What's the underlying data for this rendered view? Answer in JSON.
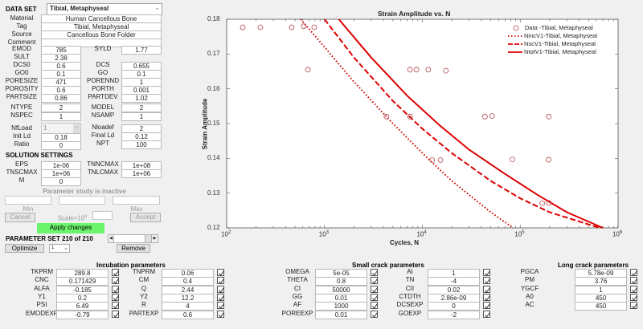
{
  "data_set": {
    "label": "DATA SET",
    "selected": "Tibial, Metaphyseal",
    "material_label": "Material",
    "material": "Human Cancellous Bone",
    "tag_label": "Tag",
    "tag": "Tibial, Metaphyseal",
    "source_label": "Source",
    "source": "Cancellous Bone Folder",
    "comment_label": "Comment",
    "comment": ""
  },
  "fields": [
    {
      "label": "EMOD",
      "value": "785",
      "label2": "SYLD",
      "value2": "1.77"
    },
    {
      "label": "SULT",
      "value": "2.38"
    },
    {
      "label": "DCS0",
      "value": "0.6",
      "label2": "DCS",
      "value2": "0.655"
    },
    {
      "label": "GO0",
      "value": "0.1",
      "label2": "GO",
      "value2": "0.1"
    },
    {
      "label": "PORESIZE",
      "value": "471",
      "label2": "PORENND",
      "value2": "1"
    },
    {
      "label": "POROSITY",
      "value": "0.6",
      "label2": "PORTH",
      "value2": "0.001"
    },
    {
      "label": "PARTSIZE",
      "value": "0.86",
      "label2": "PARTDEV",
      "value2": "1.02"
    },
    {
      "label": "NTYPE",
      "value": "2",
      "label2": "MODEL",
      "value2": "2"
    },
    {
      "label": "NSPEC",
      "value": "1",
      "label2": "NSAMP",
      "value2": "1"
    }
  ],
  "loading": {
    "nfload_label": "NfLoad",
    "nfload": "1",
    "nloadef_label": "Nloadef",
    "nloadef": "2",
    "initld_label": "Init Ld",
    "initld": "0.18",
    "finalld_label": "Final Ld",
    "finalld": "0.12",
    "ratio_label": "Ratio",
    "ratio": "0",
    "npt_label": "NPT",
    "npt": "100"
  },
  "solution": {
    "title": "SOLUTION SETTINGS",
    "eps_label": "EPS",
    "eps": "1e-06",
    "tnncmax_label": "TNNCMAX",
    "tnncmax": "1e+08",
    "tnscmax_label": "TNSCMAX",
    "tnscmax": "1e+06",
    "tnlcmax_label": "TNLCMAX",
    "tnlcmax": "1e+06",
    "m_label": "M",
    "m": "0"
  },
  "param_study": {
    "status": "Parameter study is inactive",
    "min_label": "Min",
    "max_label": "Max",
    "cancel": "Cancel",
    "scale": "Scale=10",
    "scale_exp": "x",
    "accept": "Accept",
    "apply": "Apply changes",
    "set_label": "PARAMETER SET 210 of 210",
    "optimize": "Optimize",
    "opt_select": "1",
    "remove": "Remove"
  },
  "incubation": {
    "title": "Incubation parameters",
    "rows": [
      {
        "l": "TKPRM",
        "v": "289.8",
        "l2": "TNPRM",
        "v2": "0.06"
      },
      {
        "l": "CNC",
        "v": "0.171429",
        "l2": "CM",
        "v2": "0.4"
      },
      {
        "l": "ALFA",
        "v": "-0.185",
        "l2": "Q",
        "v2": "2.44"
      },
      {
        "l": "Y1",
        "v": "0.2",
        "l2": "Y2",
        "v2": "12.2"
      },
      {
        "l": "PSI",
        "v": "6.49",
        "l2": "R",
        "v2": "4"
      },
      {
        "l": "EMODEXP",
        "v": "-0.79",
        "l2": "PARTEXP",
        "v2": "0.6"
      }
    ]
  },
  "small_crack": {
    "title": "Small crack parameters",
    "rows": [
      {
        "l": "OMEGA",
        "v": "5e-05",
        "l2": "AI",
        "v2": "1"
      },
      {
        "l": "THETA",
        "v": "0.8",
        "l2": "TN",
        "v2": "-4"
      },
      {
        "l": "CI",
        "v": "50000",
        "l2": "CII",
        "v2": "0.02"
      },
      {
        "l": "GG",
        "v": "0.01",
        "l2": "CTDTH",
        "v2": "2.86e-09"
      },
      {
        "l": "AF",
        "v": "1000",
        "l2": "DCSEXP",
        "v2": "0"
      },
      {
        "l": "POREEXP",
        "v": "0.01",
        "l2": "GOEXP",
        "v2": "-2"
      }
    ]
  },
  "long_crack": {
    "title": "Long crack parameters",
    "rows": [
      {
        "l": "PGCA",
        "v": "5.78e-09"
      },
      {
        "l": "PM",
        "v": "3.76"
      },
      {
        "l": "YGCF",
        "v": "1"
      },
      {
        "l": "A0",
        "v": "450"
      },
      {
        "l": "AC",
        "v": "450"
      }
    ]
  },
  "chart_data": {
    "type": "scatter",
    "title": "Strain Amplitude vs. N",
    "xlabel": "Cycles, N",
    "ylabel": "Strain Amplitude",
    "xscale": "log",
    "xlim": [
      100,
      1000000
    ],
    "ylim": [
      0.12,
      0.18
    ],
    "xticks": [
      "10^2",
      "10^3",
      "10^4",
      "10^5",
      "10^6"
    ],
    "yticks": [
      "0.12",
      "0.13",
      "0.14",
      "0.15",
      "0.16",
      "0.17",
      "0.18"
    ],
    "legend_position": "northeast",
    "legend": [
      "Data -Tibial, Metaphyseal",
      "NincV1-Tibial, Metaphyseal",
      "NscV1-Tibial, Metaphyseal",
      "NtotV1-Tibial, Metaphyseal"
    ],
    "series": [
      {
        "name": "Data -Tibial, Metaphyseal",
        "style": "circle",
        "color": "#b5474f",
        "points": [
          [
            146,
            0.1777
          ],
          [
            221,
            0.1777
          ],
          [
            462,
            0.1777
          ],
          [
            614,
            0.178
          ],
          [
            785,
            0.1777
          ],
          [
            676,
            0.1655
          ],
          [
            7470,
            0.1655
          ],
          [
            8700,
            0.1655
          ],
          [
            11500,
            0.1655
          ],
          [
            17400,
            0.1652
          ],
          [
            4300,
            0.152
          ],
          [
            7470,
            0.152
          ],
          [
            43600,
            0.152
          ],
          [
            51600,
            0.1522
          ],
          [
            196000,
            0.152
          ],
          [
            12600,
            0.1395
          ],
          [
            15300,
            0.1395
          ],
          [
            83000,
            0.1397
          ],
          [
            195000,
            0.1396
          ],
          [
            168000,
            0.1271
          ],
          [
            196000,
            0.1272
          ]
        ]
      },
      {
        "name": "NincV1-Tibial, Metaphyseal",
        "style": "dotted",
        "color": "#cc0000",
        "points": [
          [
            570,
            0.18
          ],
          [
            1000,
            0.172
          ],
          [
            2000,
            0.162
          ],
          [
            5000,
            0.15
          ],
          [
            10000,
            0.1415
          ],
          [
            20000,
            0.1335
          ],
          [
            50000,
            0.1245
          ],
          [
            85000,
            0.12
          ]
        ]
      },
      {
        "name": "NscV1-Tibial, Metaphyseal",
        "style": "dashed",
        "color": "#dd0000",
        "points": [
          [
            1000,
            0.18
          ],
          [
            2000,
            0.169
          ],
          [
            5000,
            0.1565
          ],
          [
            10000,
            0.1485
          ],
          [
            20000,
            0.1415
          ],
          [
            50000,
            0.1335
          ],
          [
            100000,
            0.1285
          ],
          [
            200000,
            0.1245
          ],
          [
            500000,
            0.121
          ],
          [
            650000,
            0.12
          ]
        ]
      },
      {
        "name": "NtotV1-Tibial, Metaphyseal",
        "style": "solid",
        "color": "#dd0000",
        "points": [
          [
            1400,
            0.18
          ],
          [
            3000,
            0.169
          ],
          [
            7000,
            0.158
          ],
          [
            15000,
            0.1495
          ],
          [
            30000,
            0.1425
          ],
          [
            70000,
            0.1355
          ],
          [
            150000,
            0.1295
          ],
          [
            300000,
            0.1245
          ],
          [
            700000,
            0.12
          ]
        ]
      }
    ]
  }
}
